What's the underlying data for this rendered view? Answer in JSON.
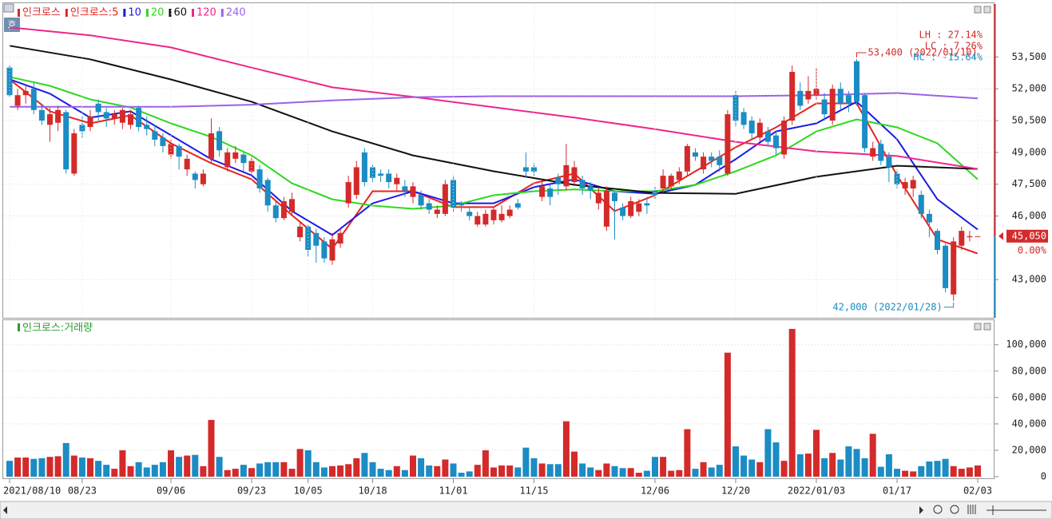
{
  "chart_data": [
    {
      "type": "candlestick",
      "title": "인크로스",
      "up_color": "#d42a2a",
      "down_color": "#1b8cc4",
      "open": [
        53000,
        51200,
        51700,
        52000,
        51000,
        50300,
        50400,
        50900,
        48000,
        50300,
        50200,
        51300,
        50900,
        50600,
        50400,
        50300,
        51100,
        50300,
        50000,
        49700,
        48900,
        49300,
        48200,
        48000,
        47500,
        48700,
        50000,
        48300,
        48700,
        48900,
        48100,
        48200,
        47700,
        46500,
        45900,
        46200,
        45000,
        45500,
        45200,
        44800,
        43900,
        44700,
        46600,
        47000,
        49000,
        48300,
        48000,
        48000,
        47500,
        47400,
        46900,
        47000,
        46600,
        46100,
        46100,
        47700,
        46600,
        46200,
        45600,
        45600,
        45800,
        45800,
        46000,
        46600,
        48300,
        48300,
        46900,
        47300,
        47800,
        47400,
        47600,
        47700,
        47400,
        46600,
        45500,
        47100,
        46400,
        46000,
        46200,
        46600,
        47200,
        47300,
        47400,
        47700,
        48100,
        49000,
        48200,
        48800,
        48800,
        48000,
        51700,
        50900,
        50500,
        49700,
        50000,
        49800,
        48900,
        50500,
        51900,
        51500,
        51700,
        51500,
        50500,
        52000,
        51700,
        53300,
        51700,
        48800,
        49400,
        48800,
        48000,
        47300,
        47300,
        47000,
        46100,
        45300,
        44600,
        42300,
        44600,
        45000,
        45050
      ],
      "high": [
        53100,
        52000,
        52200,
        52300,
        51300,
        51100,
        51200,
        51000,
        50100,
        50700,
        51000,
        51500,
        51100,
        51000,
        51100,
        51000,
        51200,
        50700,
        50300,
        49900,
        49600,
        49400,
        48900,
        48100,
        48200,
        50600,
        50200,
        49200,
        49300,
        49000,
        48800,
        48400,
        47800,
        46700,
        46900,
        47100,
        45700,
        45600,
        45400,
        45000,
        45200,
        45400,
        47900,
        48600,
        49200,
        48400,
        48200,
        48200,
        48000,
        47700,
        47600,
        47200,
        46800,
        46500,
        47700,
        47900,
        46700,
        46400,
        46200,
        46300,
        46400,
        46500,
        46500,
        46800,
        49000,
        48500,
        47600,
        47500,
        48000,
        49400,
        48600,
        47900,
        47600,
        47300,
        47400,
        47200,
        46600,
        46900,
        46800,
        46900,
        47400,
        48200,
        48000,
        48300,
        49400,
        49200,
        49000,
        49000,
        49100,
        51000,
        51900,
        51100,
        50700,
        50600,
        50200,
        50000,
        50700,
        53100,
        52300,
        52600,
        53000,
        51800,
        52200,
        52300,
        51900,
        53400,
        51800,
        49500,
        49600,
        49000,
        48200,
        47800,
        47900,
        47200,
        46300,
        45400,
        44700,
        45000,
        45500,
        45300,
        45050
      ],
      "low": [
        51600,
        51000,
        51300,
        50800,
        50300,
        49500,
        50000,
        48000,
        47900,
        49700,
        50000,
        50500,
        50200,
        50300,
        50100,
        50100,
        50000,
        49800,
        49300,
        49000,
        48700,
        48200,
        47900,
        47300,
        47400,
        48500,
        48800,
        48100,
        48500,
        48100,
        47900,
        47100,
        46200,
        45700,
        45800,
        46000,
        44800,
        44100,
        43800,
        43800,
        43700,
        44500,
        46400,
        46800,
        47400,
        47600,
        47600,
        47300,
        47200,
        46900,
        46600,
        46300,
        46100,
        45900,
        46000,
        46200,
        46200,
        45800,
        45500,
        45500,
        45600,
        45700,
        45900,
        46300,
        47800,
        47900,
        46700,
        46500,
        47000,
        47200,
        47500,
        47000,
        46800,
        46300,
        45300,
        44900,
        45800,
        45900,
        46000,
        46100,
        46800,
        47100,
        47200,
        47500,
        47900,
        48600,
        48000,
        48300,
        48100,
        47900,
        50200,
        50100,
        49600,
        49500,
        49300,
        48900,
        48700,
        50300,
        51000,
        51300,
        51500,
        50500,
        50300,
        51000,
        50900,
        51200,
        49000,
        48600,
        48400,
        47600,
        47300,
        47000,
        46900,
        45900,
        45000,
        44200,
        42400,
        42000,
        44400,
        44800,
        45050
      ],
      "close": [
        51700,
        51700,
        51900,
        51000,
        50500,
        50800,
        51000,
        48200,
        49900,
        50000,
        50700,
        50900,
        50600,
        50800,
        51000,
        50800,
        50200,
        50100,
        49600,
        49300,
        49400,
        48800,
        48700,
        47700,
        48000,
        49900,
        49100,
        49000,
        49000,
        48500,
        48600,
        47300,
        46500,
        45900,
        46700,
        46800,
        45500,
        44400,
        44600,
        44000,
        44900,
        45200,
        47600,
        48300,
        47600,
        47800,
        47900,
        47600,
        47800,
        47200,
        47400,
        46500,
        46300,
        46300,
        47500,
        46400,
        46500,
        46000,
        46000,
        46100,
        46300,
        46100,
        46300,
        46400,
        48100,
        48100,
        47400,
        46900,
        47500,
        48400,
        48300,
        47300,
        47200,
        47100,
        47200,
        46700,
        46000,
        46700,
        46600,
        46500,
        47000,
        47900,
        47900,
        48100,
        49300,
        48800,
        48800,
        48600,
        48400,
        50800,
        50500,
        50300,
        49900,
        50400,
        49500,
        49200,
        50500,
        52800,
        51200,
        51900,
        52000,
        50800,
        52000,
        51300,
        51300,
        51400,
        49200,
        49200,
        48600,
        48300,
        47500,
        47600,
        47700,
        46100,
        45700,
        44400,
        42600,
        44800,
        45300,
        45050,
        45050
      ],
      "series": [
        {
          "name": "인크로스:5",
          "color": "#e8231f",
          "x": [
            0,
            5,
            10,
            15,
            20,
            25,
            30,
            35,
            40,
            45,
            50,
            55,
            60,
            65,
            70,
            75,
            80,
            85,
            90,
            95,
            100,
            105,
            110,
            115,
            120
          ],
          "values": [
            52450,
            50940,
            50370,
            50750,
            49430,
            48490,
            47730,
            46040,
            44450,
            47170,
            47170,
            46420,
            46420,
            47550,
            48000,
            46230,
            46980,
            48110,
            49240,
            50180,
            51310,
            51310,
            47920,
            44900,
            44230
          ]
        },
        {
          "name": "10",
          "color": "#1a1ae6",
          "x": [
            0,
            5,
            10,
            15,
            20,
            25,
            30,
            35,
            40,
            45,
            50,
            55,
            60,
            65,
            70,
            75,
            80,
            85,
            90,
            95,
            100,
            105,
            110,
            115,
            120
          ],
          "values": [
            52450,
            51770,
            50640,
            50940,
            49810,
            48680,
            47920,
            46230,
            45100,
            46600,
            47170,
            46600,
            46600,
            47360,
            47730,
            47170,
            47050,
            47470,
            48680,
            49990,
            50370,
            51390,
            49620,
            46790,
            45360
          ]
        },
        {
          "name": "20",
          "color": "#2fd81f",
          "x": [
            0,
            5,
            10,
            15,
            20,
            25,
            30,
            35,
            40,
            45,
            50,
            55,
            60,
            65,
            70,
            75,
            80,
            85,
            90,
            95,
            100,
            105,
            110,
            115,
            120
          ],
          "values": [
            52560,
            52140,
            51500,
            51120,
            50370,
            49730,
            48860,
            47540,
            46790,
            46490,
            46340,
            46490,
            46980,
            47170,
            47250,
            47170,
            47170,
            47470,
            48110,
            48860,
            49990,
            50560,
            50180,
            49430,
            47730
          ]
        },
        {
          "name": "60",
          "color": "#111111",
          "x": [
            0,
            10,
            20,
            30,
            40,
            50,
            60,
            70,
            80,
            90,
            100,
            110,
            120
          ],
          "values": [
            54030,
            53390,
            52440,
            51390,
            49990,
            48860,
            48110,
            47470,
            47090,
            47050,
            47850,
            48370,
            48220
          ]
        },
        {
          "name": "120",
          "color": "#f0258c",
          "x": [
            0,
            10,
            20,
            30,
            40,
            50,
            60,
            70,
            80,
            90,
            100,
            110,
            120
          ],
          "values": [
            54900,
            54520,
            53950,
            53000,
            52070,
            51620,
            51130,
            50640,
            50100,
            49500,
            49050,
            48830,
            48220
          ]
        },
        {
          "name": "240",
          "color": "#9a62e8",
          "x": [
            0,
            10,
            20,
            30,
            40,
            50,
            60,
            70,
            80,
            90,
            100,
            110,
            120
          ],
          "values": [
            51150,
            51150,
            51150,
            51250,
            51450,
            51600,
            51650,
            51650,
            51650,
            51650,
            51700,
            51800,
            51550
          ]
        }
      ],
      "ylim": [
        41200,
        56000
      ],
      "yticks": [
        {
          "value": 43000,
          "label": "43,000"
        },
        {
          "value": 46000,
          "label": "46,000"
        },
        {
          "value": 47500,
          "label": "47,500"
        },
        {
          "value": 49000,
          "label": "49,000"
        },
        {
          "value": 50500,
          "label": "50,500"
        },
        {
          "value": 52000,
          "label": "52,000"
        },
        {
          "value": 53500,
          "label": "53,500"
        }
      ],
      "grid": true,
      "high_label": {
        "value": 53400,
        "label": "53,400 (2022/01/10)"
      },
      "low_label": {
        "value": 42000,
        "label": "42,000 (2022/01/28)"
      },
      "stats": [
        "LH :  27.14%",
        "LC :   7.26%",
        "HC : -15.64%"
      ],
      "last_price": {
        "value": 45050,
        "label": "45,050"
      },
      "change_label": "0.00%",
      "corner_label": "호"
    },
    {
      "type": "bar",
      "title": "인크로스:거래량",
      "color": "#2e9a2e",
      "categories": [
        "2021/08/10",
        null,
        null,
        null,
        null,
        null,
        null,
        null,
        null,
        "08/23",
        null,
        null,
        null,
        null,
        null,
        null,
        null,
        null,
        null,
        null,
        "09/06",
        null,
        null,
        null,
        null,
        null,
        null,
        null,
        null,
        null,
        "09/23",
        null,
        null,
        null,
        null,
        null,
        null,
        "10/05",
        null,
        null,
        null,
        null,
        null,
        null,
        null,
        "10/18",
        null,
        null,
        null,
        null,
        null,
        null,
        null,
        null,
        null,
        "11/01",
        null,
        null,
        null,
        null,
        null,
        null,
        null,
        null,
        null,
        "11/15",
        null,
        null,
        null,
        null,
        null,
        null,
        null,
        null,
        null,
        null,
        null,
        null,
        null,
        null,
        "12/06",
        null,
        null,
        null,
        null,
        null,
        null,
        null,
        null,
        null,
        "12/20",
        null,
        null,
        null,
        null,
        null,
        null,
        null,
        null,
        null,
        "2022/01/03",
        null,
        null,
        null,
        null,
        null,
        null,
        null,
        null,
        null,
        "01/17",
        null,
        null,
        null,
        null,
        null,
        null,
        null,
        null,
        null,
        "02/03"
      ],
      "values": [
        12000,
        14500,
        14500,
        13500,
        14000,
        15000,
        15500,
        25500,
        16000,
        14500,
        14000,
        12000,
        9000,
        6000,
        20000,
        8000,
        11000,
        7000,
        9000,
        11000,
        20000,
        15000,
        16000,
        16500,
        8000,
        43000,
        15000,
        5000,
        6000,
        9000,
        6500,
        10000,
        11000,
        11000,
        11000,
        6000,
        21000,
        20000,
        11000,
        7000,
        8000,
        8500,
        9500,
        14000,
        18000,
        11000,
        6000,
        5000,
        8000,
        5000,
        16000,
        14000,
        8500,
        8000,
        13000,
        10000,
        3000,
        4000,
        9000,
        20000,
        7000,
        8500,
        8500,
        7000,
        22000,
        14000,
        10000,
        9500,
        9500,
        42000,
        19000,
        10000,
        7000,
        5000,
        10000,
        8000,
        6500,
        6500,
        3000,
        4500,
        15000,
        15000,
        4500,
        5000,
        36000,
        6000,
        11000,
        7000,
        9000,
        94000,
        23000,
        16000,
        13000,
        11000,
        36000,
        26000,
        12000,
        112000,
        17000,
        17500,
        35500,
        14000,
        18000,
        13000,
        23000,
        21000,
        14000,
        32500,
        7500,
        17000,
        6000,
        4500,
        4000,
        8000,
        11500,
        12000,
        13500,
        8000,
        6000,
        7000,
        8500
      ],
      "ylim": [
        0,
        118000
      ],
      "yticks": [
        0,
        {
          "value": 20000,
          "label": "20,000"
        },
        {
          "value": 40000,
          "label": "40,000"
        },
        {
          "value": 60000,
          "label": "60,000"
        },
        {
          "value": 80000,
          "label": "80,000"
        },
        {
          "value": 100000,
          "label": "100,000"
        }
      ],
      "grid": true
    }
  ]
}
